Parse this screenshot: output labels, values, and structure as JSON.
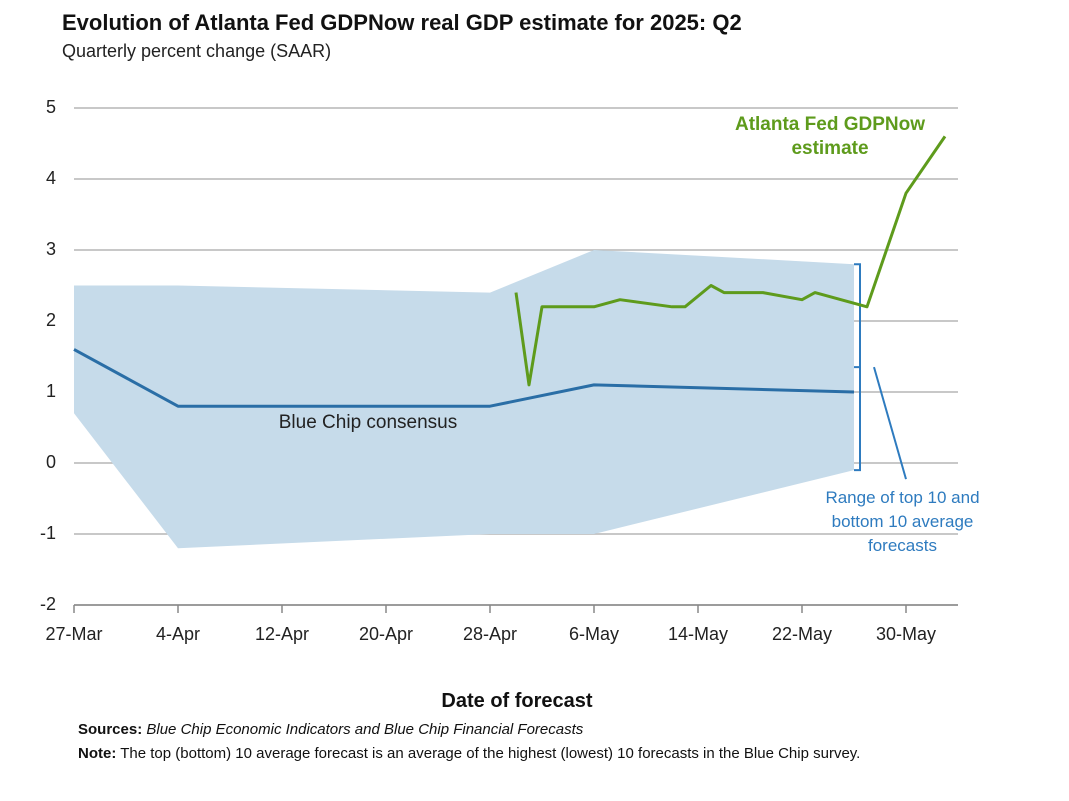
{
  "chart_data": {
    "type": "line",
    "title": "Evolution of Atlanta Fed GDPNow real GDP estimate for 2025: Q2",
    "subtitle": "Quarterly percent change (SAAR)",
    "x_label": "Date of forecast",
    "xlim": [
      "27-Mar",
      "3-Jun"
    ],
    "xticks": [
      "27-Mar",
      "4-Apr",
      "12-Apr",
      "20-Apr",
      "28-Apr",
      "6-May",
      "14-May",
      "22-May",
      "30-May"
    ],
    "ylim": [
      -2,
      5
    ],
    "yticks": [
      -2,
      -1,
      0,
      1,
      2,
      3,
      4,
      5
    ],
    "grid": true,
    "range": {
      "label": "Range of top 10 and bottom 10 average forecasts",
      "color": "#c6dbea",
      "x": [
        "27-Mar",
        "4-Apr",
        "28-Apr",
        "6-May",
        "26-May"
      ],
      "upper": [
        2.5,
        2.5,
        2.4,
        3.0,
        2.8
      ],
      "lower": [
        0.7,
        -1.2,
        -1.0,
        -1.0,
        -0.1
      ]
    },
    "series": [
      {
        "name": "Blue Chip consensus",
        "color": "#2a6ea6",
        "x": [
          "27-Mar",
          "4-Apr",
          "28-Apr",
          "6-May",
          "26-May"
        ],
        "values": [
          1.6,
          0.8,
          0.8,
          1.1,
          1.0
        ]
      },
      {
        "name": "Atlanta Fed GDPNow estimate",
        "color": "#5e9b1c",
        "x": [
          "30-Apr",
          "1-May",
          "2-May",
          "6-May",
          "8-May",
          "12-May",
          "13-May",
          "15-May",
          "16-May",
          "19-May",
          "22-May",
          "23-May",
          "27-May",
          "30-May",
          "2-Jun"
        ],
        "values": [
          2.4,
          1.1,
          2.2,
          2.2,
          2.3,
          2.2,
          2.2,
          2.5,
          2.4,
          2.4,
          2.3,
          2.4,
          2.2,
          3.8,
          4.6
        ]
      }
    ],
    "sources_label": "Sources:",
    "sources": "Blue Chip Economic Indicators and Blue Chip Financial Forecasts",
    "note_label": "Note:",
    "note": "The top (bottom) 10 average forecast is an average of the highest (lowest) 10 forecasts in the Blue Chip survey."
  }
}
